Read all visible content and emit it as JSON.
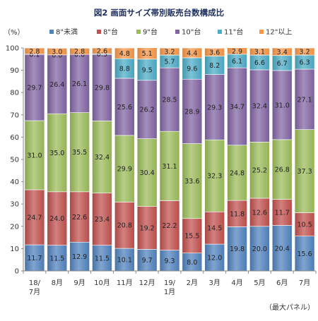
{
  "chart_data": {
    "type": "bar",
    "stacked": true,
    "title": "図2 画面サイズ帯別販売台数構成比",
    "ylabel": "（%）",
    "footnote": "（最大パネル）",
    "ylim": [
      0,
      100
    ],
    "yticks": [
      0,
      10,
      20,
      30,
      40,
      50,
      60,
      70,
      80,
      90,
      100
    ],
    "grid": false,
    "legend_position": "top",
    "categories": [
      [
        "18/",
        "7月"
      ],
      [
        "8月"
      ],
      [
        "9月"
      ],
      [
        "10月"
      ],
      [
        "11月"
      ],
      [
        "12月"
      ],
      [
        "19/",
        "1月"
      ],
      [
        "2月"
      ],
      [
        "3月"
      ],
      [
        "4月"
      ],
      [
        "5月"
      ],
      [
        "6月"
      ],
      [
        "7月"
      ]
    ],
    "series": [
      {
        "name": "8\"未満",
        "color": "#4f81bd",
        "values": [
          11.7,
          11.5,
          12.9,
          11.5,
          10.1,
          9.7,
          9.3,
          8.0,
          12.0,
          19.8,
          20.0,
          20.4,
          15.6
        ]
      },
      {
        "name": "8\"台",
        "color": "#c0504d",
        "values": [
          24.7,
          24.0,
          22.6,
          23.4,
          20.8,
          19.2,
          22.2,
          15.5,
          14.5,
          11.8,
          12.6,
          11.7,
          10.5
        ]
      },
      {
        "name": "9\"台",
        "color": "#9bbb59",
        "values": [
          31.0,
          35.0,
          35.5,
          32.4,
          29.9,
          30.4,
          31.1,
          33.6,
          32.3,
          24.8,
          25.2,
          26.8,
          37.3
        ]
      },
      {
        "name": "10\"台",
        "color": "#8064a2",
        "values": [
          29.7,
          26.4,
          26.1,
          29.8,
          25.6,
          26.2,
          28.5,
          28.9,
          29.3,
          34.7,
          32.4,
          31.0,
          27.1
        ]
      },
      {
        "name": "11\"台",
        "color": "#4bacc6",
        "values": [
          0.1,
          0.0,
          0.0,
          0.3,
          8.8,
          9.5,
          5.7,
          9.6,
          8.2,
          6.1,
          6.6,
          6.7,
          6.3
        ]
      },
      {
        "name": "12\"以上",
        "color": "#f79646",
        "values": [
          2.8,
          3.0,
          2.8,
          2.6,
          4.8,
          5.1,
          3.2,
          4.4,
          3.6,
          2.9,
          3.1,
          3.4,
          3.2
        ]
      }
    ]
  }
}
